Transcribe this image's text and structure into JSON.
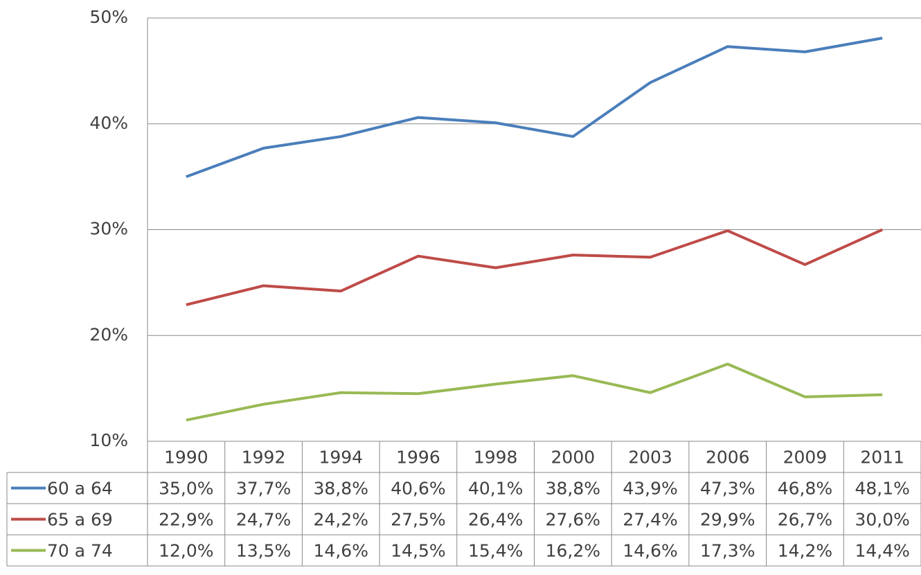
{
  "chart_data": {
    "type": "line",
    "categories": [
      "1990",
      "1992",
      "1994",
      "1996",
      "1998",
      "2000",
      "2003",
      "2006",
      "2009",
      "2011"
    ],
    "series": [
      {
        "name": "60 a 64",
        "color": "#4a7ebb",
        "values": [
          35.0,
          37.7,
          38.8,
          40.6,
          40.1,
          38.8,
          43.9,
          47.3,
          46.8,
          48.1
        ],
        "value_labels": [
          "35,0%",
          "37,7%",
          "38,8%",
          "40,6%",
          "40,1%",
          "38,8%",
          "43,9%",
          "47,3%",
          "46,8%",
          "48,1%"
        ]
      },
      {
        "name": "65 a 69",
        "color": "#be4b48",
        "values": [
          22.9,
          24.7,
          24.2,
          27.5,
          26.4,
          27.6,
          27.4,
          29.9,
          26.7,
          30.0
        ],
        "value_labels": [
          "22,9%",
          "24,7%",
          "24,2%",
          "27,5%",
          "26,4%",
          "27,6%",
          "27,4%",
          "29,9%",
          "26,7%",
          "30,0%"
        ]
      },
      {
        "name": "70 a 74",
        "color": "#98b954",
        "values": [
          12.0,
          13.5,
          14.6,
          14.5,
          15.4,
          16.2,
          14.6,
          17.3,
          14.2,
          14.4
        ],
        "value_labels": [
          "12,0%",
          "13,5%",
          "14,6%",
          "14,5%",
          "15,4%",
          "16,2%",
          "14,6%",
          "17,3%",
          "14,2%",
          "14,4%"
        ]
      }
    ],
    "ylim": [
      10,
      50
    ],
    "yticks": [
      {
        "value": 10,
        "label": "10%"
      },
      {
        "value": 20,
        "label": "20%"
      },
      {
        "value": 30,
        "label": "30%"
      },
      {
        "value": 40,
        "label": "40%"
      },
      {
        "value": 50,
        "label": "50%"
      }
    ],
    "grid": true
  }
}
